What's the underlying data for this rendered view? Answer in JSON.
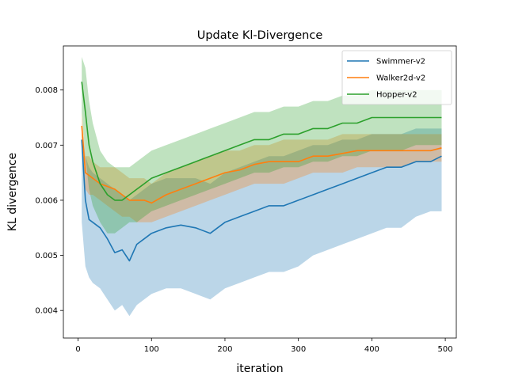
{
  "chart_data": {
    "type": "line",
    "title": "Update Kl-Divergence",
    "xlabel": "iteration",
    "ylabel": "KL divergence",
    "xlim": [
      -20,
      515
    ],
    "ylim": [
      0.0035,
      0.0088
    ],
    "xticks": [
      0,
      100,
      200,
      300,
      400,
      500
    ],
    "yticks": [
      0.004,
      0.005,
      0.006,
      0.007,
      0.008
    ],
    "xtick_labels": [
      "0",
      "100",
      "200",
      "300",
      "400",
      "500"
    ],
    "ytick_labels": [
      "0.004",
      "0.005",
      "0.006",
      "0.007",
      "0.008"
    ],
    "grid": false,
    "legend_position": "top-right",
    "series": [
      {
        "name": "Swimmer-v2",
        "color": "#1f77b4",
        "x": [
          5,
          10,
          15,
          20,
          30,
          40,
          50,
          60,
          70,
          80,
          90,
          100,
          120,
          140,
          160,
          180,
          200,
          220,
          240,
          260,
          280,
          300,
          320,
          340,
          360,
          380,
          400,
          420,
          440,
          460,
          480,
          495
        ],
        "mean": [
          0.0071,
          0.006,
          0.00565,
          0.0056,
          0.0055,
          0.0053,
          0.00505,
          0.0051,
          0.0049,
          0.0052,
          0.0053,
          0.0054,
          0.0055,
          0.00555,
          0.0055,
          0.0054,
          0.0056,
          0.0057,
          0.0058,
          0.0059,
          0.0059,
          0.006,
          0.0061,
          0.0062,
          0.0063,
          0.0064,
          0.0065,
          0.0066,
          0.0066,
          0.0067,
          0.0067,
          0.0068
        ],
        "lower": [
          0.0056,
          0.0048,
          0.0046,
          0.0045,
          0.0044,
          0.0042,
          0.004,
          0.0041,
          0.0039,
          0.0041,
          0.0042,
          0.0043,
          0.0044,
          0.0044,
          0.0043,
          0.0042,
          0.0044,
          0.0045,
          0.0046,
          0.0047,
          0.0047,
          0.0048,
          0.005,
          0.0051,
          0.0052,
          0.0053,
          0.0054,
          0.0055,
          0.0055,
          0.0057,
          0.0058,
          0.0058
        ],
        "upper": [
          0.0074,
          0.0068,
          0.0066,
          0.0065,
          0.0064,
          0.0063,
          0.0062,
          0.0061,
          0.006,
          0.0061,
          0.0062,
          0.0063,
          0.0064,
          0.0064,
          0.0064,
          0.0063,
          0.0065,
          0.0066,
          0.0067,
          0.0068,
          0.0068,
          0.0069,
          0.007,
          0.007,
          0.0071,
          0.0071,
          0.0072,
          0.0072,
          0.0072,
          0.0073,
          0.0073,
          0.0073
        ]
      },
      {
        "name": "Walker2d-v2",
        "color": "#ff7f0e",
        "x": [
          5,
          10,
          15,
          20,
          30,
          40,
          50,
          60,
          70,
          80,
          90,
          100,
          120,
          140,
          160,
          180,
          200,
          220,
          240,
          260,
          280,
          300,
          320,
          340,
          360,
          380,
          400,
          420,
          440,
          460,
          480,
          495
        ],
        "mean": [
          0.00735,
          0.0065,
          0.00645,
          0.0064,
          0.0063,
          0.00625,
          0.0062,
          0.0061,
          0.006,
          0.006,
          0.006,
          0.00595,
          0.0061,
          0.0062,
          0.0063,
          0.0064,
          0.0065,
          0.00655,
          0.00665,
          0.0067,
          0.0067,
          0.0067,
          0.0068,
          0.0068,
          0.00685,
          0.0069,
          0.0069,
          0.0069,
          0.0069,
          0.0069,
          0.0069,
          0.00695
        ],
        "lower": [
          0.0071,
          0.0062,
          0.0061,
          0.0061,
          0.006,
          0.0059,
          0.0058,
          0.0057,
          0.0057,
          0.0056,
          0.0056,
          0.0056,
          0.0057,
          0.0058,
          0.0059,
          0.006,
          0.0061,
          0.0062,
          0.0063,
          0.0063,
          0.0063,
          0.0064,
          0.0065,
          0.0065,
          0.0065,
          0.0066,
          0.0066,
          0.0066,
          0.0066,
          0.0067,
          0.0067,
          0.0067
        ],
        "upper": [
          0.0076,
          0.0068,
          0.0068,
          0.0067,
          0.0066,
          0.0066,
          0.0066,
          0.0065,
          0.0064,
          0.0064,
          0.0064,
          0.0063,
          0.0065,
          0.0066,
          0.0067,
          0.0068,
          0.0069,
          0.0069,
          0.007,
          0.007,
          0.0071,
          0.0071,
          0.0071,
          0.0071,
          0.0072,
          0.0072,
          0.0072,
          0.0072,
          0.0072,
          0.0072,
          0.0072,
          0.0072
        ]
      },
      {
        "name": "Hopper-v2",
        "color": "#2ca02c",
        "x": [
          5,
          10,
          15,
          20,
          30,
          40,
          50,
          60,
          70,
          80,
          90,
          100,
          120,
          140,
          160,
          180,
          200,
          220,
          240,
          260,
          280,
          300,
          320,
          340,
          360,
          380,
          400,
          420,
          440,
          460,
          480,
          495
        ],
        "mean": [
          0.00815,
          0.0076,
          0.007,
          0.0067,
          0.0063,
          0.0061,
          0.006,
          0.006,
          0.0061,
          0.0062,
          0.0063,
          0.0064,
          0.0065,
          0.0066,
          0.0067,
          0.0068,
          0.0069,
          0.007,
          0.0071,
          0.0071,
          0.0072,
          0.0072,
          0.0073,
          0.0073,
          0.0074,
          0.0074,
          0.0075,
          0.0075,
          0.0075,
          0.0075,
          0.0075,
          0.0075
        ],
        "lower": [
          0.0076,
          0.0068,
          0.0062,
          0.0059,
          0.0056,
          0.0054,
          0.0054,
          0.0055,
          0.0056,
          0.0056,
          0.0057,
          0.0058,
          0.0059,
          0.006,
          0.0061,
          0.0062,
          0.0063,
          0.0064,
          0.0065,
          0.0065,
          0.0066,
          0.0066,
          0.0067,
          0.0067,
          0.0068,
          0.0068,
          0.0069,
          0.0069,
          0.0069,
          0.007,
          0.007,
          0.007
        ],
        "upper": [
          0.0086,
          0.0084,
          0.0078,
          0.0074,
          0.0069,
          0.0067,
          0.0066,
          0.0066,
          0.0066,
          0.0067,
          0.0068,
          0.0069,
          0.007,
          0.0071,
          0.0072,
          0.0073,
          0.0074,
          0.0075,
          0.0076,
          0.0076,
          0.0077,
          0.0077,
          0.0078,
          0.0078,
          0.0079,
          0.0079,
          0.008,
          0.008,
          0.008,
          0.008,
          0.008,
          0.008
        ]
      }
    ]
  }
}
